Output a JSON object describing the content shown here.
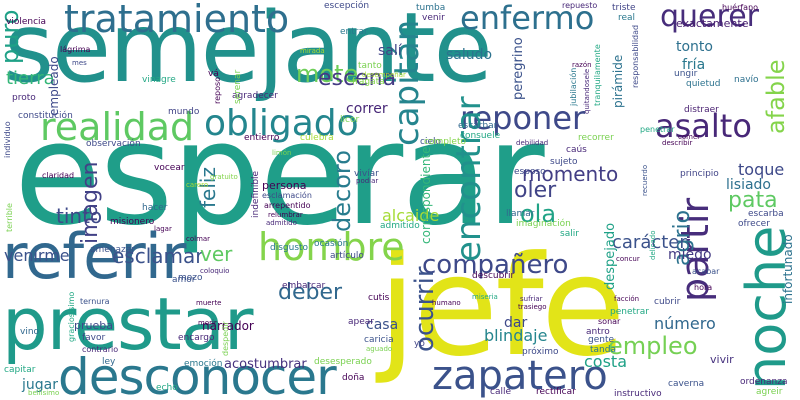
{
  "cloud": {
    "words": [
      {
        "text": "esperar",
        "color": "#1f9e89"
      },
      {
        "text": "semejante",
        "color": "#21918c"
      },
      {
        "text": "jefe",
        "color": "#e2e418"
      },
      {
        "text": "prestar",
        "color": "#1f9a8a"
      },
      {
        "text": "referir",
        "color": "#31688e"
      },
      {
        "text": "desconocer",
        "color": "#2a788e"
      },
      {
        "text": "tratamiento",
        "color": "#2e6f8e"
      },
      {
        "text": "noche",
        "color": "#1f9a8a"
      },
      {
        "text": "zapatero",
        "color": "#3b528b"
      },
      {
        "text": "reponer",
        "color": "#3e4989"
      },
      {
        "text": "asalto",
        "color": "#482878"
      },
      {
        "text": "realidad",
        "color": "#5ec962"
      },
      {
        "text": "obligado",
        "color": "#24868e"
      },
      {
        "text": "hombre",
        "color": "#84d44b"
      },
      {
        "text": "enfermo",
        "color": "#2d708e"
      },
      {
        "text": "querer",
        "color": "#472d7b"
      },
      {
        "text": "partir",
        "color": "#472d7b"
      },
      {
        "text": "compañero",
        "color": "#3e4989"
      },
      {
        "text": "capitán",
        "color": "#25858e"
      },
      {
        "text": "encontrar",
        "color": "#21918c"
      },
      {
        "text": "deber",
        "color": "#31688e"
      },
      {
        "text": "ocurrir",
        "color": "#3b528b"
      },
      {
        "text": "empleo",
        "color": "#75d054"
      },
      {
        "text": "mote",
        "color": "#6ece58"
      },
      {
        "text": "puro",
        "color": "#1fa187"
      },
      {
        "text": "escena",
        "color": "#443a83"
      },
      {
        "text": "pata",
        "color": "#5ec962"
      },
      {
        "text": "agrio",
        "color": "#2c728e"
      },
      {
        "text": "afable",
        "color": "#84d44b"
      },
      {
        "text": "ola",
        "color": "#20a386"
      },
      {
        "text": "oler",
        "color": "#414487"
      },
      {
        "text": "tinto",
        "color": "#3e4989"
      },
      {
        "text": "imagen",
        "color": "#424186"
      },
      {
        "text": "decoro",
        "color": "#287c8e"
      },
      {
        "text": "feliz",
        "color": "#2a788e"
      },
      {
        "text": "esclamar",
        "color": "#3b528b"
      },
      {
        "text": "momento",
        "color": "#433e85"
      },
      {
        "text": "ver",
        "color": "#5ec962"
      },
      {
        "text": "venirme",
        "color": "#3b528b"
      },
      {
        "text": "tierra",
        "color": "#35b779"
      },
      {
        "text": "carácter",
        "color": "#3b528b"
      },
      {
        "text": "toque",
        "color": "#3e4989"
      },
      {
        "text": "lisiado",
        "color": "#2d708e"
      },
      {
        "text": "miedo",
        "color": "#443a83"
      },
      {
        "text": "número",
        "color": "#31688e"
      },
      {
        "text": "blindaje",
        "color": "#25858e"
      },
      {
        "text": "costa",
        "color": "#1fa187"
      },
      {
        "text": "alcaide",
        "color": "#a5db36"
      },
      {
        "text": "salí",
        "color": "#414487"
      },
      {
        "text": "saludo",
        "color": "#2c728e"
      },
      {
        "text": "tonto",
        "color": "#2d708e"
      },
      {
        "text": "fría",
        "color": "#2a788e"
      },
      {
        "text": "casa",
        "color": "#3b528b"
      },
      {
        "text": "correr",
        "color": "#482878"
      },
      {
        "text": "dar",
        "color": "#3e4989"
      },
      {
        "text": "narrador",
        "color": "#440154"
      },
      {
        "text": "prueba",
        "color": "#3e4989"
      },
      {
        "text": "acostumbrar",
        "color": "#46327e"
      },
      {
        "text": "exactamente",
        "color": "#481f70"
      },
      {
        "text": "empleado",
        "color": "#3e4989"
      },
      {
        "text": "despejado",
        "color": "#1fa187"
      },
      {
        "text": "infortunado",
        "color": "#2c728e"
      },
      {
        "text": "pirámide",
        "color": "#2c728e"
      },
      {
        "text": "peregrino",
        "color": "#3b528b"
      },
      {
        "text": "correspondiente",
        "color": "#35b779"
      },
      {
        "text": "jugar",
        "color": "#2a788e"
      },
      {
        "text": "persona",
        "color": "#440154"
      },
      {
        "text": "vivir",
        "color": "#46327e"
      },
      {
        "text": "violencia",
        "color": "#440154"
      },
      {
        "text": "vinagre",
        "color": "#22a884"
      },
      {
        "text": "navío",
        "color": "#2d708e"
      },
      {
        "text": "quietud",
        "color": "#2c728e"
      },
      {
        "text": "ungir",
        "color": "#3b528b"
      },
      {
        "text": "agradecer",
        "color": "#482878"
      },
      {
        "text": "mundo",
        "color": "#414487"
      },
      {
        "text": "observación",
        "color": "#3e4989"
      },
      {
        "text": "constitución",
        "color": "#3e4989"
      },
      {
        "text": "hacer",
        "color": "#31688e"
      },
      {
        "text": "misionero",
        "color": "#440154"
      },
      {
        "text": "amenazar",
        "color": "#3b528b"
      },
      {
        "text": "ordenanza",
        "color": "#482878"
      },
      {
        "text": "agreir",
        "color": "#7ad151"
      },
      {
        "text": "caverna",
        "color": "#3b528b"
      },
      {
        "text": "rectificar",
        "color": "#440154"
      },
      {
        "text": "instructivo",
        "color": "#482878"
      },
      {
        "text": "calle",
        "color": "#482878"
      },
      {
        "text": "doña",
        "color": "#440154"
      },
      {
        "text": "desesperado",
        "color": "#7ad151"
      },
      {
        "text": "capitar",
        "color": "#22a884"
      },
      {
        "text": "echo",
        "color": "#22a884"
      },
      {
        "text": "ley",
        "color": "#31688e"
      },
      {
        "text": "encargo",
        "color": "#482878"
      },
      {
        "text": "favor",
        "color": "#3e4989"
      },
      {
        "text": "emoción",
        "color": "#2a788e"
      },
      {
        "text": "vino",
        "color": "#31688e"
      },
      {
        "text": "penetrar",
        "color": "#22a884"
      },
      {
        "text": "cubrir",
        "color": "#3e4989"
      },
      {
        "text": "antro",
        "color": "#482878"
      },
      {
        "text": "gente",
        "color": "#3b528b"
      },
      {
        "text": "tanda",
        "color": "#2a788e"
      },
      {
        "text": "próximo",
        "color": "#3e4989"
      },
      {
        "text": "vocear",
        "color": "#440154"
      },
      {
        "text": "mozo",
        "color": "#3b528b"
      },
      {
        "text": "amor",
        "color": "#3b528b"
      },
      {
        "text": "escarba",
        "color": "#3e4989"
      },
      {
        "text": "ofrecer",
        "color": "#3e4989"
      },
      {
        "text": "distraer",
        "color": "#481f70"
      },
      {
        "text": "principio",
        "color": "#414487"
      },
      {
        "text": "admitido",
        "color": "#22a884"
      },
      {
        "text": "embarcar",
        "color": "#482878"
      },
      {
        "text": "ocasión",
        "color": "#2a788e"
      },
      {
        "text": "disgusto",
        "color": "#2a788e"
      },
      {
        "text": "artículo",
        "color": "#3e4989"
      },
      {
        "text": "apear",
        "color": "#482878"
      },
      {
        "text": "descubrir",
        "color": "#440154"
      },
      {
        "text": "escarbar",
        "color": "#31688e"
      },
      {
        "text": "consuele",
        "color": "#22a884"
      },
      {
        "text": "recorrer",
        "color": "#7ad151"
      },
      {
        "text": "entierro",
        "color": "#440154"
      },
      {
        "text": "cielo",
        "color": "#3b528b"
      },
      {
        "text": "sujeto",
        "color": "#3e4989"
      },
      {
        "text": "caús",
        "color": "#482878"
      },
      {
        "text": "esposo",
        "color": "#3e4989"
      },
      {
        "text": "llamar",
        "color": "#31688e"
      },
      {
        "text": "salir",
        "color": "#22a884"
      },
      {
        "text": "imaginación",
        "color": "#7ad151"
      },
      {
        "text": "cutis",
        "color": "#440154"
      },
      {
        "text": "caricia",
        "color": "#3b528b"
      },
      {
        "text": "yo",
        "color": "#414487"
      },
      {
        "text": "real",
        "color": "#2a788e"
      },
      {
        "text": "venir",
        "color": "#482878"
      },
      {
        "text": "tumba",
        "color": "#2c728e"
      },
      {
        "text": "escepción",
        "color": "#3e4989"
      },
      {
        "text": "repuesto",
        "color": "#482878"
      },
      {
        "text": "triste",
        "color": "#414487"
      },
      {
        "text": "huérfano",
        "color": "#440154"
      },
      {
        "text": "entrar",
        "color": "#2a788e"
      },
      {
        "text": "lágrima",
        "color": "#440154"
      },
      {
        "text": "proto",
        "color": "#482878"
      },
      {
        "text": "vá",
        "color": "#440154"
      },
      {
        "text": "reposo",
        "color": "#440154"
      },
      {
        "text": "serenar",
        "color": "#7ad151"
      },
      {
        "text": "fragata",
        "color": "#84d44b"
      },
      {
        "text": "licor",
        "color": "#7ad151"
      },
      {
        "text": "tanto",
        "color": "#7ad151"
      },
      {
        "text": "desempeñar",
        "color": "#a5db36"
      },
      {
        "text": "culebra",
        "color": "#a5db36"
      },
      {
        "text": "completo",
        "color": "#84d44b"
      },
      {
        "text": "indefinible",
        "color": "#482878"
      },
      {
        "text": "vivíar",
        "color": "#3b528b"
      },
      {
        "text": "arrepentido",
        "color": "#440154"
      },
      {
        "text": "esclamación",
        "color": "#3e4989"
      },
      {
        "text": "podiar",
        "color": "#482878"
      },
      {
        "text": "ternura",
        "color": "#3b528b"
      },
      {
        "text": "muerte",
        "color": "#440154"
      },
      {
        "text": "gratuito",
        "color": "#84d44b"
      },
      {
        "text": "graciosísimo",
        "color": "#22a884"
      },
      {
        "text": "contrario",
        "color": "#482878"
      },
      {
        "text": "bellísimo",
        "color": "#7ad151"
      },
      {
        "text": "coloquio",
        "color": "#482878"
      },
      {
        "text": "claridad",
        "color": "#440154"
      },
      {
        "text": "terrible",
        "color": "#7ad151"
      },
      {
        "text": "individuo",
        "color": "#3e4989"
      },
      {
        "text": "jubilación",
        "color": "#2a788e"
      },
      {
        "text": "responsabilidad",
        "color": "#3e4989"
      },
      {
        "text": "tranquilamente",
        "color": "#22a884"
      },
      {
        "text": "quitandosele",
        "color": "#482878"
      },
      {
        "text": "debilidad",
        "color": "#482878"
      },
      {
        "text": "describir",
        "color": "#440154"
      },
      {
        "text": "sonar",
        "color": "#440154"
      },
      {
        "text": "penetrar",
        "color": "#22a884"
      },
      {
        "text": "hora",
        "color": "#440154"
      },
      {
        "text": "acabar",
        "color": "#3b528b"
      },
      {
        "text": "facción",
        "color": "#440154"
      },
      {
        "text": "miseria",
        "color": "#22a884"
      },
      {
        "text": "humano",
        "color": "#440154"
      },
      {
        "text": "sufriar",
        "color": "#482878"
      },
      {
        "text": "trasiego",
        "color": "#440154"
      },
      {
        "text": "aguado",
        "color": "#7ad151"
      },
      {
        "text": "delicado",
        "color": "#22a884"
      },
      {
        "text": "recuerdo",
        "color": "#3b528b"
      },
      {
        "text": "concur",
        "color": "#440154"
      },
      {
        "text": "relumbrar",
        "color": "#440154"
      },
      {
        "text": "admitido",
        "color": "#482878"
      },
      {
        "text": "lagar",
        "color": "#440154"
      },
      {
        "text": "colmar",
        "color": "#440154"
      },
      {
        "text": "despedir",
        "color": "#7ad151"
      },
      {
        "text": "morir",
        "color": "#440154"
      },
      {
        "text": "limón",
        "color": "#7ad151"
      },
      {
        "text": "carero",
        "color": "#a5db36"
      },
      {
        "text": "mirada",
        "color": "#a5db36"
      },
      {
        "text": "mes",
        "color": "#3e4989"
      },
      {
        "text": "razón",
        "color": "#440154"
      },
      {
        "text": "comer",
        "color": "#440154"
      }
    ]
  }
}
